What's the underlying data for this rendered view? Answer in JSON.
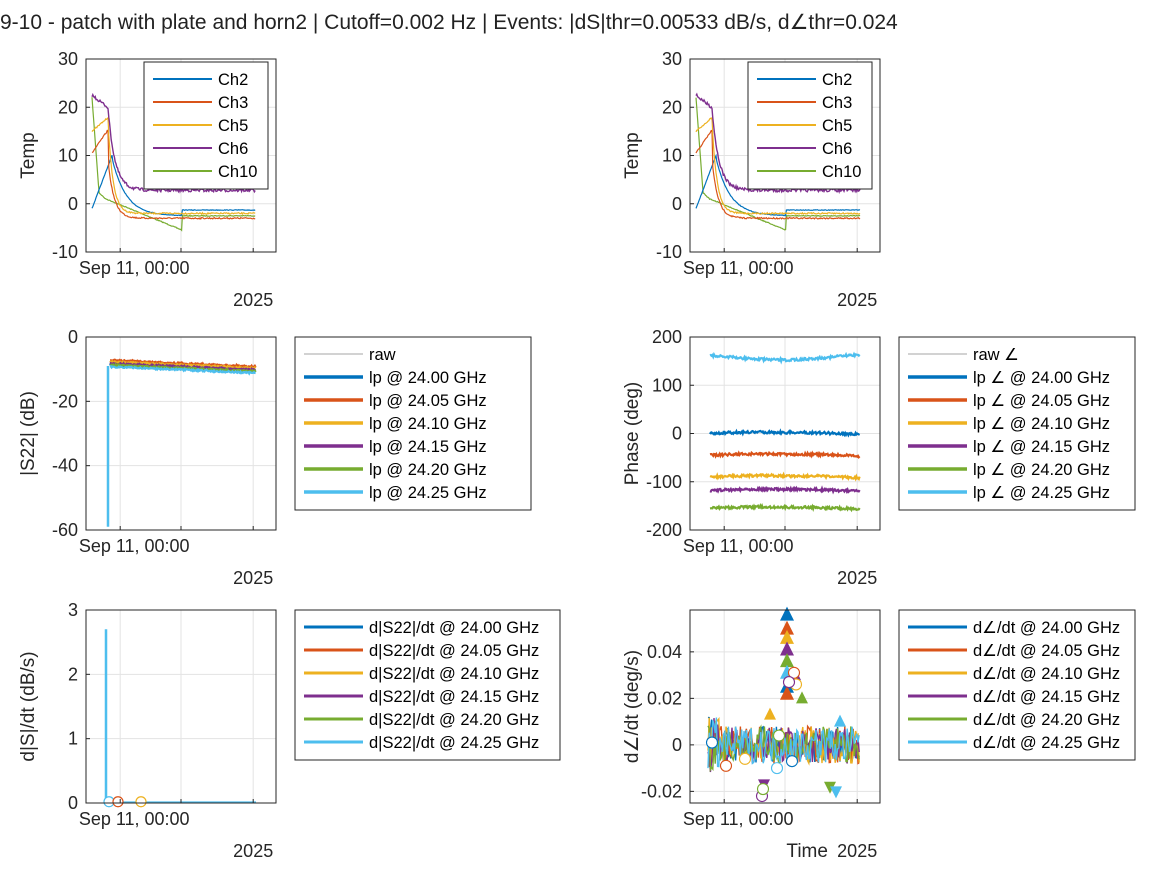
{
  "title": "9-10 - patch with plate and horn2 | Cutoff=0.002 Hz | Events: |dS|thr=0.00533 dB/s, d∠thr=0.024",
  "colors": {
    "c1": "#0072BD",
    "c2": "#D95319",
    "c3": "#EDB120",
    "c4": "#7E2F8E",
    "c5": "#77AC30",
    "c6": "#4DBEEE",
    "raw": "#A6A6A6"
  },
  "chart_data": [
    {
      "id": "temp-left",
      "type": "line",
      "ylabel": "Temp",
      "ylim": [
        -10,
        30
      ],
      "yticks": [
        "30",
        "20",
        "10",
        "0",
        "-10"
      ],
      "xtick": "Sep 11, 00:00",
      "xyear": "2025",
      "legend": [
        "Ch2",
        "Ch3",
        "Ch5",
        "Ch6",
        "Ch10"
      ],
      "legend_position": "inside-top-right",
      "grid": true
    },
    {
      "id": "temp-right",
      "type": "line",
      "ylabel": "Temp",
      "ylim": [
        -10,
        30
      ],
      "yticks": [
        "30",
        "20",
        "10",
        "0",
        "-10"
      ],
      "xtick": "Sep 11, 00:00",
      "xyear": "2025",
      "legend": [
        "Ch2",
        "Ch3",
        "Ch5",
        "Ch6",
        "Ch10"
      ],
      "legend_position": "inside-top-right",
      "grid": true
    },
    {
      "id": "s22-mag",
      "type": "line",
      "ylabel": "|S22| (dB)",
      "ylim": [
        -60,
        0
      ],
      "yticks": [
        "0",
        "-20",
        "-40",
        "-60"
      ],
      "xtick": "Sep 11, 00:00",
      "xyear": "2025",
      "legend": [
        "raw",
        "lp @ 24.00 GHz",
        "lp @ 24.05 GHz",
        "lp @ 24.10 GHz",
        "lp @ 24.15 GHz",
        "lp @ 24.20 GHz",
        "lp @ 24.25 GHz"
      ],
      "legend_position": "outside-right",
      "grid": true,
      "series_levels_db": [
        -9.5,
        -8.0,
        -8.5,
        -9.0,
        -9.5,
        -10.0
      ]
    },
    {
      "id": "s22-phase",
      "type": "line",
      "ylabel": "Phase (deg)",
      "ylim": [
        -200,
        200
      ],
      "yticks": [
        "200",
        "100",
        "0",
        "-100",
        "-200"
      ],
      "xtick": "Sep 11, 00:00",
      "xyear": "2025",
      "legend": [
        "raw ∠",
        "lp ∠ @ 24.00 GHz",
        "lp ∠ @ 24.05 GHz",
        "lp ∠ @ 24.10 GHz",
        "lp ∠ @ 24.15 GHz",
        "lp ∠ @ 24.20 GHz",
        "lp ∠ @ 24.25 GHz"
      ],
      "legend_position": "outside-right",
      "grid": true,
      "series_levels_deg": [
        0,
        -45,
        -90,
        -118,
        -155,
        162
      ]
    },
    {
      "id": "ds-dt",
      "type": "line",
      "ylabel": "d|S|/dt (dB/s)",
      "ylim": [
        0,
        3
      ],
      "yticks": [
        "3",
        "2",
        "1",
        "0"
      ],
      "xtick": "Sep 11, 00:00",
      "xyear": "2025",
      "legend": [
        "d|S22|/dt @ 24.00 GHz",
        "d|S22|/dt @ 24.05 GHz",
        "d|S22|/dt @ 24.10 GHz",
        "d|S22|/dt @ 24.15 GHz",
        "d|S22|/dt @ 24.20 GHz",
        "d|S22|/dt @ 24.25 GHz"
      ],
      "legend_position": "outside-right",
      "grid": true,
      "spike_peak": 2.7
    },
    {
      "id": "dphase-dt",
      "type": "line",
      "ylabel": "d∠/dt (deg/s)",
      "ylim": [
        -0.025,
        0.058
      ],
      "yticks": [
        "0.04",
        "0.02",
        "0",
        "-0.02"
      ],
      "xtick": "Sep 11, 00:00",
      "xyear": "2025",
      "xlabel": "Time",
      "legend": [
        "d∠/dt @ 24.00 GHz",
        "d∠/dt @ 24.05 GHz",
        "d∠/dt @ 24.10 GHz",
        "d∠/dt @ 24.15 GHz",
        "d∠/dt @ 24.20 GHz",
        "d∠/dt @ 24.25 GHz"
      ],
      "legend_position": "outside-right",
      "grid": true
    }
  ]
}
